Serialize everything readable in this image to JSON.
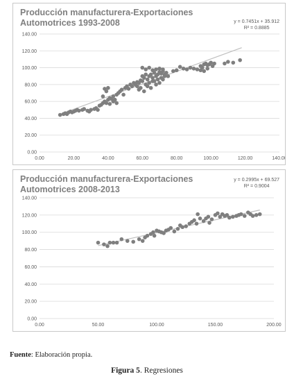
{
  "chart_data": [
    {
      "type": "scatter",
      "title_line1": "Producción manufacturera-Exportaciones",
      "title_line2": "Automotrices 1993-2008",
      "equation": "y = 0.7451x + 35.912",
      "r_squared": "R² = 0.8885",
      "xlim": [
        0,
        140
      ],
      "ylim": [
        0,
        140
      ],
      "x_ticks": [
        "0.00",
        "20.00",
        "40.00",
        "60.00",
        "80.00",
        "100.00",
        "120.00",
        "140.00"
      ],
      "y_ticks": [
        "0.00",
        "20.00",
        "40.00",
        "60.00",
        "80.00",
        "100.00",
        "120.00",
        "140.00"
      ],
      "trendline": {
        "slope": 0.7451,
        "intercept": 35.912,
        "x_range": [
          12,
          118
        ]
      },
      "marker_color": "#7f7f7f",
      "trend_color": "#bfbfbf",
      "points": [
        [
          12,
          44
        ],
        [
          14,
          45
        ],
        [
          15,
          46
        ],
        [
          16,
          45
        ],
        [
          17,
          47
        ],
        [
          18,
          48
        ],
        [
          19,
          47
        ],
        [
          20,
          48
        ],
        [
          21,
          49
        ],
        [
          22,
          50
        ],
        [
          23,
          49
        ],
        [
          25,
          50
        ],
        [
          26,
          51
        ],
        [
          28,
          49
        ],
        [
          29,
          48
        ],
        [
          30,
          50
        ],
        [
          32,
          51
        ],
        [
          33,
          52
        ],
        [
          34,
          50
        ],
        [
          35,
          55
        ],
        [
          36,
          56
        ],
        [
          37,
          58
        ],
        [
          38,
          60
        ],
        [
          39,
          58
        ],
        [
          40,
          62
        ],
        [
          41,
          64
        ],
        [
          42,
          63
        ],
        [
          43,
          66
        ],
        [
          44,
          62
        ],
        [
          45,
          68
        ],
        [
          46,
          70
        ],
        [
          38,
          75
        ],
        [
          40,
          76
        ],
        [
          37,
          66
        ],
        [
          39,
          72
        ],
        [
          41,
          57
        ],
        [
          43,
          60
        ],
        [
          45,
          58
        ],
        [
          47,
          72
        ],
        [
          48,
          74
        ],
        [
          49,
          68
        ],
        [
          50,
          76
        ],
        [
          51,
          78
        ],
        [
          52,
          75
        ],
        [
          53,
          80
        ],
        [
          54,
          78
        ],
        [
          55,
          82
        ],
        [
          56,
          80
        ],
        [
          57,
          83
        ],
        [
          58,
          82
        ],
        [
          59,
          85
        ],
        [
          60,
          84
        ],
        [
          60,
          90
        ],
        [
          61,
          88
        ],
        [
          62,
          92
        ],
        [
          63,
          86
        ],
        [
          64,
          90
        ],
        [
          65,
          92
        ],
        [
          66,
          88
        ],
        [
          67,
          94
        ],
        [
          68,
          90
        ],
        [
          69,
          92
        ],
        [
          70,
          95
        ],
        [
          71,
          93
        ],
        [
          72,
          96
        ],
        [
          60,
          100
        ],
        [
          62,
          98
        ],
        [
          64,
          100
        ],
        [
          66,
          97
        ],
        [
          68,
          98
        ],
        [
          70,
          99
        ],
        [
          72,
          98
        ],
        [
          73,
          92
        ],
        [
          74,
          94
        ],
        [
          75,
          90
        ],
        [
          62,
          80
        ],
        [
          64,
          82
        ],
        [
          66,
          84
        ],
        [
          68,
          80
        ],
        [
          70,
          82
        ],
        [
          72,
          86
        ],
        [
          58,
          74
        ],
        [
          57,
          78
        ],
        [
          59,
          76
        ],
        [
          61,
          72
        ],
        [
          63,
          78
        ],
        [
          65,
          76
        ],
        [
          67,
          84
        ],
        [
          69,
          86
        ],
        [
          71,
          88
        ],
        [
          73,
          90
        ],
        [
          78,
          96
        ],
        [
          80,
          97
        ],
        [
          82,
          101
        ],
        [
          84,
          99
        ],
        [
          86,
          98
        ],
        [
          88,
          100
        ],
        [
          90,
          99
        ],
        [
          92,
          98
        ],
        [
          94,
          102
        ],
        [
          95,
          100
        ],
        [
          96,
          104
        ],
        [
          97,
          105
        ],
        [
          98,
          103
        ],
        [
          99,
          104
        ],
        [
          100,
          106
        ],
        [
          101,
          102
        ],
        [
          102,
          105
        ],
        [
          94,
          97
        ],
        [
          96,
          96
        ],
        [
          98,
          99
        ],
        [
          108,
          105
        ],
        [
          110,
          107
        ],
        [
          113,
          106
        ],
        [
          117,
          109
        ]
      ]
    },
    {
      "type": "scatter",
      "title_line1": "Producción manufacturera-Exportaciones",
      "title_line2": "Automotrices 2008-2013",
      "equation": "y = 0.2995x + 69.527",
      "r_squared": "R² = 0.9004",
      "xlim": [
        0,
        200
      ],
      "ylim": [
        0,
        140
      ],
      "x_ticks": [
        "0.00",
        "50.00",
        "100.00",
        "150.00",
        "200.00"
      ],
      "y_ticks": [
        "0.00",
        "20.00",
        "40.00",
        "60.00",
        "80.00",
        "100.00",
        "120.00",
        "140.00"
      ],
      "trendline": {
        "slope": 0.2995,
        "intercept": 69.527,
        "x_range": [
          50,
          188
        ]
      },
      "marker_color": "#7f7f7f",
      "trend_color": "#bfbfbf",
      "points": [
        [
          50,
          88
        ],
        [
          55,
          86
        ],
        [
          58,
          84
        ],
        [
          60,
          88
        ],
        [
          63,
          88
        ],
        [
          66,
          88
        ],
        [
          70,
          92
        ],
        [
          75,
          90
        ],
        [
          80,
          89
        ],
        [
          85,
          92
        ],
        [
          88,
          90
        ],
        [
          90,
          94
        ],
        [
          92,
          96
        ],
        [
          95,
          98
        ],
        [
          97,
          100
        ],
        [
          98,
          96
        ],
        [
          100,
          102
        ],
        [
          102,
          101
        ],
        [
          104,
          100
        ],
        [
          106,
          99
        ],
        [
          108,
          102
        ],
        [
          110,
          103
        ],
        [
          112,
          105
        ],
        [
          115,
          101
        ],
        [
          118,
          104
        ],
        [
          120,
          108
        ],
        [
          122,
          106
        ],
        [
          125,
          107
        ],
        [
          128,
          110
        ],
        [
          130,
          112
        ],
        [
          132,
          114
        ],
        [
          134,
          110
        ],
        [
          135,
          121
        ],
        [
          137,
          116
        ],
        [
          140,
          113
        ],
        [
          142,
          116
        ],
        [
          144,
          118
        ],
        [
          145,
          111
        ],
        [
          147,
          115
        ],
        [
          150,
          120
        ],
        [
          152,
          122
        ],
        [
          154,
          118
        ],
        [
          156,
          121
        ],
        [
          158,
          119
        ],
        [
          160,
          120
        ],
        [
          162,
          117
        ],
        [
          165,
          118
        ],
        [
          168,
          119
        ],
        [
          170,
          120
        ],
        [
          172,
          121
        ],
        [
          175,
          119
        ],
        [
          178,
          123
        ],
        [
          180,
          121
        ],
        [
          182,
          119
        ],
        [
          185,
          120
        ],
        [
          188,
          121
        ]
      ]
    }
  ],
  "captions": {
    "source_label": "Fuente",
    "source_text": ": Elaboración propia.",
    "figure_label": "Figura 5",
    "figure_text": ". Regresiones"
  }
}
